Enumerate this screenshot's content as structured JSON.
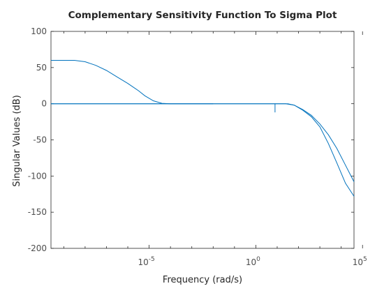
{
  "chart_data": {
    "type": "line",
    "title": "Complementary Sensitivity Function To Sigma Plot",
    "xlabel": "Frequency (rad/s)",
    "ylabel": "Singular Values (dB)",
    "xscale": "log",
    "xlim_log10": [
      -9.6,
      4.6
    ],
    "ylim": [
      -200,
      100
    ],
    "grid": false,
    "line_color": "#0072BD",
    "xticks": [
      {
        "base": "10",
        "exp": "-5",
        "log10": -5
      },
      {
        "base": "10",
        "exp": "0",
        "log10": 0
      },
      {
        "base": "10",
        "exp": "5",
        "log10": 5
      }
    ],
    "yticks": [
      100,
      50,
      0,
      -50,
      -100,
      -150,
      -200
    ],
    "series": [
      {
        "points_log10x_db": [
          [
            -9.6,
            60
          ],
          [
            -8.5,
            60
          ],
          [
            -8.0,
            58
          ],
          [
            -7.5,
            53
          ],
          [
            -7.0,
            46
          ],
          [
            -6.5,
            37
          ],
          [
            -6.0,
            28
          ],
          [
            -5.5,
            18
          ],
          [
            -5.2,
            11
          ],
          [
            -4.8,
            4
          ],
          [
            -4.4,
            0.5
          ],
          [
            -4.0,
            0
          ],
          [
            -2.0,
            0
          ]
        ]
      },
      {
        "points_log10x_db": [
          [
            -9.6,
            0
          ],
          [
            1.5,
            0
          ],
          [
            1.8,
            -2
          ],
          [
            2.2,
            -8
          ],
          [
            2.6,
            -16
          ],
          [
            3.0,
            -28
          ],
          [
            3.4,
            -43
          ],
          [
            3.8,
            -62
          ],
          [
            4.2,
            -85
          ],
          [
            4.6,
            -108
          ]
        ]
      },
      {
        "points_log10x_db": [
          [
            -9.6,
            0
          ],
          [
            1.4,
            0
          ],
          [
            1.8,
            -2
          ],
          [
            2.2,
            -9
          ],
          [
            2.6,
            -18
          ],
          [
            3.0,
            -32
          ],
          [
            3.4,
            -55
          ],
          [
            3.8,
            -82
          ],
          [
            4.2,
            -110
          ],
          [
            4.6,
            -128
          ]
        ]
      },
      {
        "points_log10x_db": [
          [
            0.9,
            0
          ],
          [
            0.9,
            -12
          ]
        ]
      }
    ]
  }
}
